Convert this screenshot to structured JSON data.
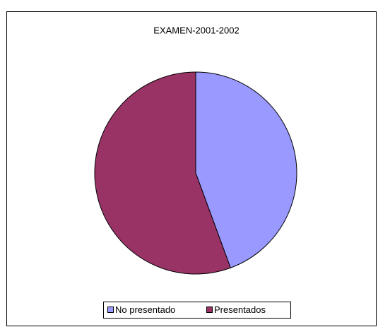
{
  "chart_data": {
    "type": "pie",
    "title": "EXAMEN-2001-2002",
    "categories": [
      "No presentado",
      "Presentados"
    ],
    "values": [
      44.4,
      55.6
    ],
    "colors": [
      "#9999ff",
      "#993366"
    ],
    "legend": "bottom"
  }
}
